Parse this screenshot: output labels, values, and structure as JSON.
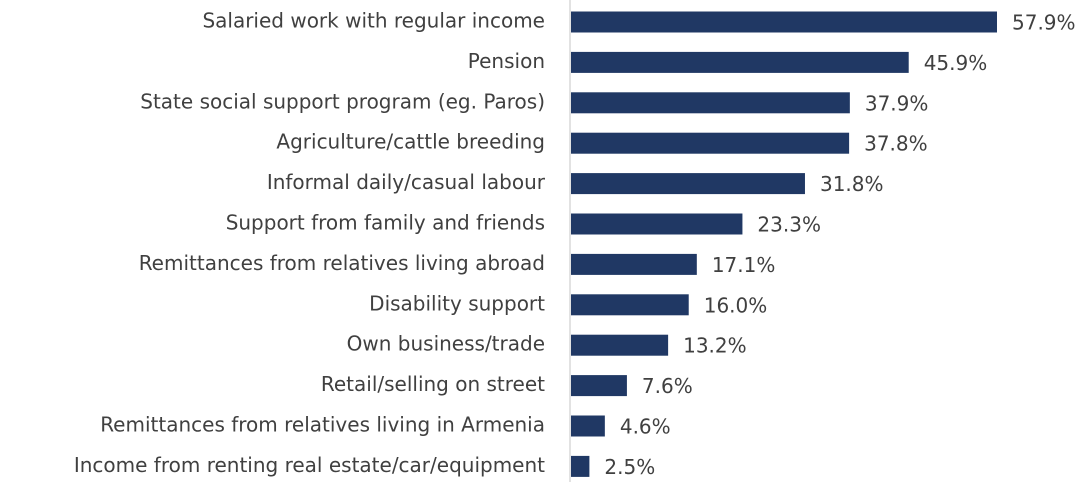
{
  "chart_data": {
    "type": "bar",
    "orientation": "horizontal",
    "color": "#203864",
    "categories": [
      "Salaried work with regular income",
      "Pension",
      "State social support program (eg. Paros)",
      "Agriculture/cattle breeding",
      "Informal daily/casual labour",
      "Support from family and friends",
      "Remittances from relatives living abroad",
      "Disability support",
      "Own business/trade",
      "Retail/selling on street",
      "Remittances from relatives living in Armenia",
      "Income from renting real estate/car/equipment"
    ],
    "values": [
      57.9,
      45.9,
      37.9,
      37.8,
      31.8,
      23.3,
      17.1,
      16.0,
      13.2,
      7.6,
      4.6,
      2.5
    ],
    "value_labels": [
      "57.9%",
      "45.9%",
      "37.9%",
      "37.8%",
      "31.8%",
      "23.3%",
      "17.1%",
      "16.0%",
      "13.2%",
      "7.6%",
      "4.6%",
      "2.5%"
    ]
  }
}
